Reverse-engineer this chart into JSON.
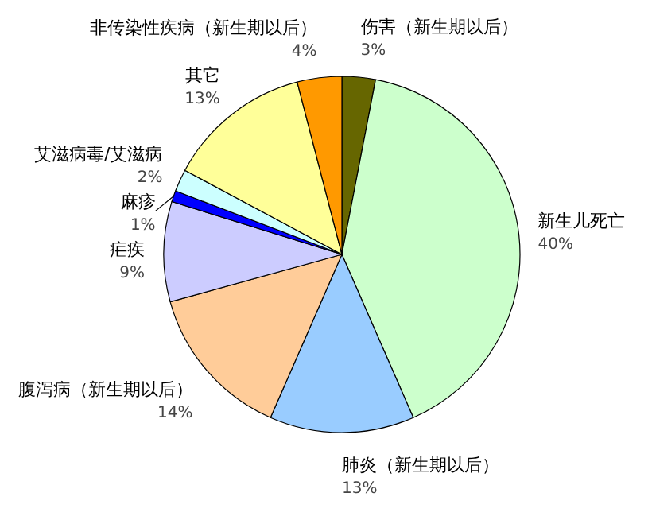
{
  "chart_data": {
    "type": "pie",
    "categories": [
      "伤害（新生期以后）",
      "新生儿死亡",
      "肺炎（新生期以后）",
      "腹泻病（新生期以后）",
      "疟疾",
      "麻疹",
      "艾滋病毒/艾滋病",
      "其它",
      "非传染性疾病（新生期以后）"
    ],
    "values": [
      3,
      40,
      13,
      14,
      9,
      1,
      2,
      13,
      4
    ],
    "value_labels": [
      "3%",
      "40%",
      "13%",
      "14%",
      "9%",
      "1%",
      "2%",
      "13%",
      "4%"
    ],
    "colors": [
      "#666600",
      "#ccffcc",
      "#99ccff",
      "#ffcc99",
      "#ccccff",
      "#0000ff",
      "#ccffff",
      "#ffff99",
      "#ff9900"
    ]
  }
}
